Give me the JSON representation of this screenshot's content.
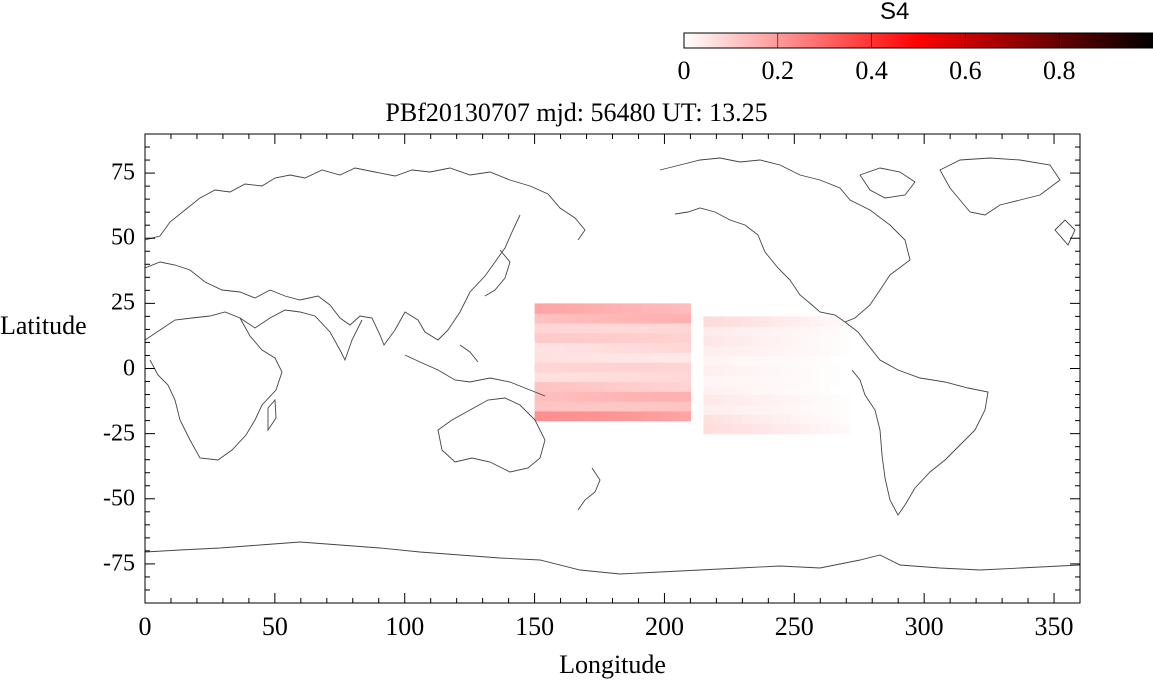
{
  "chart_data": {
    "type": "heatmap",
    "title": "PBf20130707  mjd: 56480  UT:  13.25",
    "xlabel": "Longitude",
    "ylabel": "Latitude",
    "xlim": [
      0,
      360
    ],
    "ylim": [
      -90,
      90
    ],
    "xticks": [
      "0",
      "50",
      "100",
      "150",
      "200",
      "250",
      "300",
      "350"
    ],
    "yticks": [
      "75",
      "50",
      "25",
      "0",
      "-25",
      "-50",
      "-75"
    ],
    "colorbar": {
      "title": "S4",
      "range": [
        0,
        1
      ],
      "ticks": [
        "0",
        "0.2",
        "0.4",
        "0.6",
        "0.8"
      ],
      "colors": [
        "#ffffff",
        "#ff0000",
        "#000000"
      ]
    },
    "regions": [
      {
        "lon": [
          150,
          210
        ],
        "lat": [
          -20,
          25
        ],
        "max_value": 0.22
      },
      {
        "lon": [
          215,
          270
        ],
        "lat": [
          -25,
          17
        ],
        "max_value": 0.08
      }
    ]
  }
}
